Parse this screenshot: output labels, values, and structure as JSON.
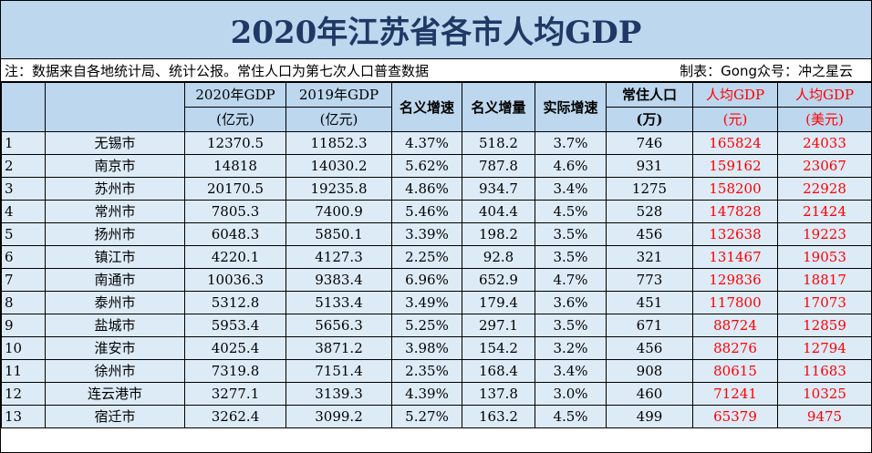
{
  "title": "2020年江苏省各市人均GDP",
  "note_left": "注：数据来自各地统计局、统计公报。常住人口为第七次人口普查数据",
  "note_right": "制表：Gong众号：冲之星云",
  "headers": {
    "gdp2020_line1": "2020年GDP",
    "gdp2020_line2": "(亿元)",
    "gdp2019_line1": "2019年GDP",
    "gdp2019_line2": "(亿元)",
    "nominal_growth": "名义增速",
    "nominal_increase": "名义增量",
    "real_growth": "实际增速",
    "population_line1": "常住人口",
    "population_line2": "(万)",
    "per_capita_yuan_line1": "人均GDP",
    "per_capita_yuan_line2": "(元)",
    "per_capita_usd_line1": "人均GDP",
    "per_capita_usd_line2": "(美元)"
  },
  "rows": [
    {
      "rank": "1",
      "city": "无锡市",
      "gdp2020": "12370.5",
      "gdp2019": "11852.3",
      "nominal_growth": "4.37%",
      "nominal_increase": "518.2",
      "real_growth": "3.7%",
      "population": "746",
      "per_capita_yuan": "165824",
      "per_capita_usd": "24033"
    },
    {
      "rank": "2",
      "city": "南京市",
      "gdp2020": "14818",
      "gdp2019": "14030.2",
      "nominal_growth": "5.62%",
      "nominal_increase": "787.8",
      "real_growth": "4.6%",
      "population": "931",
      "per_capita_yuan": "159162",
      "per_capita_usd": "23067"
    },
    {
      "rank": "3",
      "city": "苏州市",
      "gdp2020": "20170.5",
      "gdp2019": "19235.8",
      "nominal_growth": "4.86%",
      "nominal_increase": "934.7",
      "real_growth": "3.4%",
      "population": "1275",
      "per_capita_yuan": "158200",
      "per_capita_usd": "22928"
    },
    {
      "rank": "4",
      "city": "常州市",
      "gdp2020": "7805.3",
      "gdp2019": "7400.9",
      "nominal_growth": "5.46%",
      "nominal_increase": "404.4",
      "real_growth": "4.5%",
      "population": "528",
      "per_capita_yuan": "147828",
      "per_capita_usd": "21424"
    },
    {
      "rank": "5",
      "city": "扬州市",
      "gdp2020": "6048.3",
      "gdp2019": "5850.1",
      "nominal_growth": "3.39%",
      "nominal_increase": "198.2",
      "real_growth": "3.5%",
      "population": "456",
      "per_capita_yuan": "132638",
      "per_capita_usd": "19223"
    },
    {
      "rank": "6",
      "city": "镇江市",
      "gdp2020": "4220.1",
      "gdp2019": "4127.3",
      "nominal_growth": "2.25%",
      "nominal_increase": "92.8",
      "real_growth": "3.5%",
      "population": "321",
      "per_capita_yuan": "131467",
      "per_capita_usd": "19053"
    },
    {
      "rank": "7",
      "city": "南通市",
      "gdp2020": "10036.3",
      "gdp2019": "9383.4",
      "nominal_growth": "6.96%",
      "nominal_increase": "652.9",
      "real_growth": "4.7%",
      "population": "773",
      "per_capita_yuan": "129836",
      "per_capita_usd": "18817"
    },
    {
      "rank": "8",
      "city": "泰州市",
      "gdp2020": "5312.8",
      "gdp2019": "5133.4",
      "nominal_growth": "3.49%",
      "nominal_increase": "179.4",
      "real_growth": "3.6%",
      "population": "451",
      "per_capita_yuan": "117800",
      "per_capita_usd": "17073"
    },
    {
      "rank": "9",
      "city": "盐城市",
      "gdp2020": "5953.4",
      "gdp2019": "5656.3",
      "nominal_growth": "5.25%",
      "nominal_increase": "297.1",
      "real_growth": "3.5%",
      "population": "671",
      "per_capita_yuan": "88724",
      "per_capita_usd": "12859"
    },
    {
      "rank": "10",
      "city": "淮安市",
      "gdp2020": "4025.4",
      "gdp2019": "3871.2",
      "nominal_growth": "3.98%",
      "nominal_increase": "154.2",
      "real_growth": "3.2%",
      "population": "456",
      "per_capita_yuan": "88276",
      "per_capita_usd": "12794"
    },
    {
      "rank": "11",
      "city": "徐州市",
      "gdp2020": "7319.8",
      "gdp2019": "7151.4",
      "nominal_growth": "2.35%",
      "nominal_increase": "168.4",
      "real_growth": "3.4%",
      "population": "908",
      "per_capita_yuan": "80615",
      "per_capita_usd": "11683"
    },
    {
      "rank": "12",
      "city": "连云港市",
      "gdp2020": "3277.1",
      "gdp2019": "3139.3",
      "nominal_growth": "4.39%",
      "nominal_increase": "137.8",
      "real_growth": "3.0%",
      "population": "460",
      "per_capita_yuan": "71241",
      "per_capita_usd": "10325"
    },
    {
      "rank": "13",
      "city": "宿迁市",
      "gdp2020": "3262.4",
      "gdp2019": "3099.2",
      "nominal_growth": "5.27%",
      "nominal_increase": "163.2",
      "real_growth": "4.5%",
      "population": "499",
      "per_capita_yuan": "65379",
      "per_capita_usd": "9475"
    }
  ],
  "colors": {
    "header_bg": "#bdd7ee",
    "row_bg": "#ddebf7",
    "title_text": "#1f3864",
    "highlight_text": "#ff0000"
  }
}
